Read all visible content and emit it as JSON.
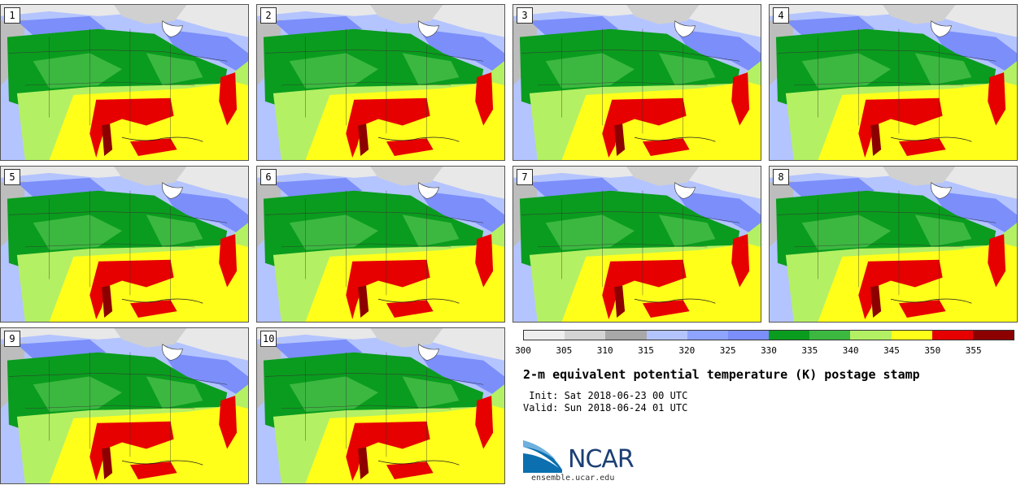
{
  "panels": [
    {
      "label": "1"
    },
    {
      "label": "2"
    },
    {
      "label": "3"
    },
    {
      "label": "4"
    },
    {
      "label": "5"
    },
    {
      "label": "6"
    },
    {
      "label": "7"
    },
    {
      "label": "8"
    },
    {
      "label": "9"
    },
    {
      "label": "10"
    }
  ],
  "legend": {
    "colors": [
      "#eeeeee",
      "#d4d4d4",
      "#a8a8a8",
      "#b4c4ff",
      "#8ea4ff",
      "#7b8efa",
      "#0a9c1e",
      "#3cb840",
      "#b4f064",
      "#ffff1a",
      "#e60000",
      "#8c0000"
    ],
    "labels": [
      "300",
      "305",
      "310",
      "315",
      "320",
      "325",
      "330",
      "335",
      "340",
      "345",
      "350",
      "355"
    ]
  },
  "title": "2-m equivalent potential temperature (K) postage stamp",
  "init": " Init: Sat 2018-06-23 00 UTC",
  "valid": "Valid: Sun 2018-06-24 01 UTC",
  "logo": {
    "text": "NCAR",
    "url": "ensemble.ucar.edu"
  }
}
